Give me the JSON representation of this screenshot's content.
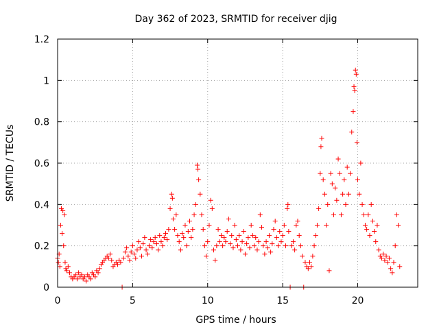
{
  "chart_data": {
    "type": "scatter",
    "title": "Day 362 of 2023, SRMTID for receiver djig",
    "xlabel": "GPS time / hours",
    "ylabel": "SRMTID / TECUs",
    "xlim": [
      0,
      24
    ],
    "ylim": [
      0,
      1.2
    ],
    "x_ticks": [
      0,
      5,
      10,
      15,
      20
    ],
    "y_ticks": [
      0,
      0.2,
      0.4,
      0.6,
      0.8,
      1,
      1.2
    ],
    "x_tick_labels": [
      "0",
      "5",
      "10",
      "15",
      "20"
    ],
    "y_tick_labels": [
      "0",
      "0.2",
      "0.4",
      "0.6",
      "0.8",
      "1",
      "1.2"
    ],
    "grid": true,
    "marker": "plus",
    "color": "#ff0000",
    "series": [
      {
        "name": "SRMTID",
        "points": [
          [
            0.0,
            0.14
          ],
          [
            0.05,
            0.12
          ],
          [
            0.1,
            0.16
          ],
          [
            0.15,
            0.1
          ],
          [
            0.2,
            0.3
          ],
          [
            0.25,
            0.38
          ],
          [
            0.3,
            0.26
          ],
          [
            0.35,
            0.37
          ],
          [
            0.4,
            0.2
          ],
          [
            0.45,
            0.35
          ],
          [
            0.5,
            0.12
          ],
          [
            0.55,
            0.09
          ],
          [
            0.6,
            0.08
          ],
          [
            0.7,
            0.1
          ],
          [
            0.8,
            0.07
          ],
          [
            0.9,
            0.05
          ],
          [
            1.0,
            0.04
          ],
          [
            1.1,
            0.05
          ],
          [
            1.2,
            0.06
          ],
          [
            1.3,
            0.04
          ],
          [
            1.4,
            0.07
          ],
          [
            1.5,
            0.05
          ],
          [
            1.6,
            0.06
          ],
          [
            1.7,
            0.04
          ],
          [
            1.8,
            0.05
          ],
          [
            1.9,
            0.03
          ],
          [
            2.0,
            0.06
          ],
          [
            2.1,
            0.05
          ],
          [
            2.2,
            0.04
          ],
          [
            2.3,
            0.07
          ],
          [
            2.4,
            0.06
          ],
          [
            2.5,
            0.05
          ],
          [
            2.6,
            0.08
          ],
          [
            2.7,
            0.07
          ],
          [
            2.8,
            0.09
          ],
          [
            2.9,
            0.11
          ],
          [
            3.0,
            0.12
          ],
          [
            3.1,
            0.13
          ],
          [
            3.2,
            0.14
          ],
          [
            3.3,
            0.15
          ],
          [
            3.4,
            0.14
          ],
          [
            3.5,
            0.16
          ],
          [
            3.6,
            0.13
          ],
          [
            3.7,
            0.1
          ],
          [
            3.8,
            0.11
          ],
          [
            3.9,
            0.12
          ],
          [
            4.0,
            0.11
          ],
          [
            4.1,
            0.13
          ],
          [
            4.2,
            0.12
          ],
          [
            4.3,
            0.0
          ],
          [
            4.4,
            0.14
          ],
          [
            4.5,
            0.17
          ],
          [
            4.6,
            0.19
          ],
          [
            4.7,
            0.15
          ],
          [
            4.8,
            0.13
          ],
          [
            4.9,
            0.17
          ],
          [
            5.0,
            0.2
          ],
          [
            5.1,
            0.16
          ],
          [
            5.2,
            0.14
          ],
          [
            5.3,
            0.18
          ],
          [
            5.4,
            0.22
          ],
          [
            5.5,
            0.19
          ],
          [
            5.6,
            0.15
          ],
          [
            5.7,
            0.21
          ],
          [
            5.8,
            0.24
          ],
          [
            5.9,
            0.18
          ],
          [
            6.0,
            0.16
          ],
          [
            6.1,
            0.2
          ],
          [
            6.2,
            0.23
          ],
          [
            6.3,
            0.19
          ],
          [
            6.4,
            0.22
          ],
          [
            6.5,
            0.24
          ],
          [
            6.6,
            0.21
          ],
          [
            6.7,
            0.18
          ],
          [
            6.8,
            0.25
          ],
          [
            6.9,
            0.22
          ],
          [
            7.0,
            0.2
          ],
          [
            7.1,
            0.24
          ],
          [
            7.2,
            0.26
          ],
          [
            7.3,
            0.23
          ],
          [
            7.4,
            0.28
          ],
          [
            7.5,
            0.38
          ],
          [
            7.6,
            0.45
          ],
          [
            7.65,
            0.43
          ],
          [
            7.7,
            0.33
          ],
          [
            7.8,
            0.28
          ],
          [
            7.9,
            0.35
          ],
          [
            8.0,
            0.25
          ],
          [
            8.1,
            0.22
          ],
          [
            8.2,
            0.18
          ],
          [
            8.3,
            0.26
          ],
          [
            8.4,
            0.24
          ],
          [
            8.5,
            0.3
          ],
          [
            8.6,
            0.2
          ],
          [
            8.7,
            0.27
          ],
          [
            8.8,
            0.32
          ],
          [
            8.9,
            0.24
          ],
          [
            9.0,
            0.28
          ],
          [
            9.1,
            0.35
          ],
          [
            9.2,
            0.4
          ],
          [
            9.3,
            0.59
          ],
          [
            9.35,
            0.57
          ],
          [
            9.4,
            0.52
          ],
          [
            9.5,
            0.45
          ],
          [
            9.6,
            0.35
          ],
          [
            9.7,
            0.28
          ],
          [
            9.8,
            0.2
          ],
          [
            9.9,
            0.15
          ],
          [
            10.0,
            0.22
          ],
          [
            10.1,
            0.3
          ],
          [
            10.2,
            0.42
          ],
          [
            10.3,
            0.38
          ],
          [
            10.4,
            0.18
          ],
          [
            10.5,
            0.13
          ],
          [
            10.6,
            0.2
          ],
          [
            10.7,
            0.28
          ],
          [
            10.8,
            0.22
          ],
          [
            10.9,
            0.25
          ],
          [
            11.0,
            0.2
          ],
          [
            11.1,
            0.24
          ],
          [
            11.2,
            0.22
          ],
          [
            11.3,
            0.27
          ],
          [
            11.4,
            0.33
          ],
          [
            11.5,
            0.21
          ],
          [
            11.6,
            0.25
          ],
          [
            11.7,
            0.19
          ],
          [
            11.8,
            0.3
          ],
          [
            11.9,
            0.23
          ],
          [
            12.0,
            0.2
          ],
          [
            12.1,
            0.25
          ],
          [
            12.2,
            0.18
          ],
          [
            12.3,
            0.22
          ],
          [
            12.4,
            0.27
          ],
          [
            12.5,
            0.16
          ],
          [
            12.6,
            0.21
          ],
          [
            12.7,
            0.24
          ],
          [
            12.8,
            0.19
          ],
          [
            12.9,
            0.3
          ],
          [
            13.0,
            0.25
          ],
          [
            13.1,
            0.2
          ],
          [
            13.2,
            0.24
          ],
          [
            13.3,
            0.18
          ],
          [
            13.4,
            0.22
          ],
          [
            13.5,
            0.35
          ],
          [
            13.6,
            0.29
          ],
          [
            13.7,
            0.2
          ],
          [
            13.8,
            0.16
          ],
          [
            13.9,
            0.22
          ],
          [
            14.0,
            0.19
          ],
          [
            14.1,
            0.25
          ],
          [
            14.2,
            0.17
          ],
          [
            14.3,
            0.21
          ],
          [
            14.4,
            0.28
          ],
          [
            14.5,
            0.32
          ],
          [
            14.6,
            0.24
          ],
          [
            14.7,
            0.2
          ],
          [
            14.8,
            0.27
          ],
          [
            14.9,
            0.22
          ],
          [
            15.0,
            0.25
          ],
          [
            15.1,
            0.3
          ],
          [
            15.2,
            0.2
          ],
          [
            15.3,
            0.38
          ],
          [
            15.35,
            0.4
          ],
          [
            15.4,
            0.27
          ],
          [
            15.5,
            0.0
          ],
          [
            15.6,
            0.2
          ],
          [
            15.7,
            0.22
          ],
          [
            15.8,
            0.18
          ],
          [
            15.9,
            0.3
          ],
          [
            16.0,
            0.32
          ],
          [
            16.1,
            0.25
          ],
          [
            16.2,
            0.2
          ],
          [
            16.3,
            0.15
          ],
          [
            16.4,
            0.0
          ],
          [
            16.5,
            0.12
          ],
          [
            16.6,
            0.1
          ],
          [
            16.7,
            0.09
          ],
          [
            16.8,
            0.12
          ],
          [
            16.9,
            0.1
          ],
          [
            17.0,
            0.15
          ],
          [
            17.1,
            0.2
          ],
          [
            17.2,
            0.25
          ],
          [
            17.3,
            0.3
          ],
          [
            17.4,
            0.38
          ],
          [
            17.5,
            0.55
          ],
          [
            17.55,
            0.68
          ],
          [
            17.6,
            0.72
          ],
          [
            17.7,
            0.52
          ],
          [
            17.8,
            0.45
          ],
          [
            17.9,
            0.3
          ],
          [
            18.0,
            0.4
          ],
          [
            18.1,
            0.08
          ],
          [
            18.2,
            0.55
          ],
          [
            18.3,
            0.5
          ],
          [
            18.4,
            0.35
          ],
          [
            18.5,
            0.48
          ],
          [
            18.6,
            0.42
          ],
          [
            18.7,
            0.62
          ],
          [
            18.8,
            0.55
          ],
          [
            18.9,
            0.35
          ],
          [
            19.0,
            0.45
          ],
          [
            19.1,
            0.52
          ],
          [
            19.2,
            0.4
          ],
          [
            19.3,
            0.58
          ],
          [
            19.4,
            0.45
          ],
          [
            19.5,
            0.55
          ],
          [
            19.6,
            0.75
          ],
          [
            19.7,
            0.85
          ],
          [
            19.75,
            0.97
          ],
          [
            19.8,
            0.95
          ],
          [
            19.85,
            1.05
          ],
          [
            19.9,
            1.03
          ],
          [
            19.95,
            0.7
          ],
          [
            20.0,
            0.52
          ],
          [
            20.1,
            0.45
          ],
          [
            20.2,
            0.6
          ],
          [
            20.3,
            0.4
          ],
          [
            20.4,
            0.35
          ],
          [
            20.5,
            0.3
          ],
          [
            20.6,
            0.28
          ],
          [
            20.7,
            0.35
          ],
          [
            20.8,
            0.25
          ],
          [
            20.9,
            0.4
          ],
          [
            21.0,
            0.32
          ],
          [
            21.1,
            0.27
          ],
          [
            21.2,
            0.22
          ],
          [
            21.3,
            0.3
          ],
          [
            21.4,
            0.18
          ],
          [
            21.5,
            0.15
          ],
          [
            21.6,
            0.14
          ],
          [
            21.7,
            0.16
          ],
          [
            21.8,
            0.13
          ],
          [
            21.9,
            0.15
          ],
          [
            22.0,
            0.12
          ],
          [
            22.1,
            0.14
          ],
          [
            22.2,
            0.09
          ],
          [
            22.3,
            0.07
          ],
          [
            22.4,
            0.12
          ],
          [
            22.5,
            0.2
          ],
          [
            22.6,
            0.35
          ],
          [
            22.7,
            0.3
          ],
          [
            22.8,
            0.1
          ]
        ]
      }
    ]
  }
}
